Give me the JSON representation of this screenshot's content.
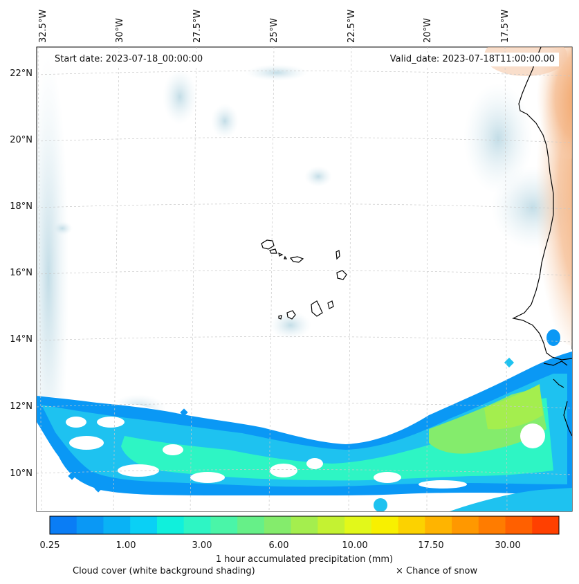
{
  "header": {
    "start_date": "Start date: 2023-07-18_00:00:00",
    "valid_date": "Valid_date: 2023-07-18T11:00:00.00"
  },
  "axes": {
    "lon_labels": [
      "32.5°W",
      "30°W",
      "27.5°W",
      "25°W",
      "22.5°W",
      "20°W",
      "17.5°W"
    ],
    "lat_labels": [
      "22°N",
      "20°N",
      "18°N",
      "16°N",
      "14°N",
      "12°N",
      "10°N"
    ]
  },
  "colorbar": {
    "title": "1 hour accumulated precipitation (mm)",
    "tick_labels": [
      "0.25",
      "1.00",
      "3.00",
      "6.00",
      "10.00",
      "17.50",
      "30.00"
    ],
    "colors": [
      "#0a7df5",
      "#0a98f5",
      "#0ab2f5",
      "#0ad0f5",
      "#10f0dc",
      "#2ef5c4",
      "#4af5a8",
      "#66f088",
      "#84ec6c",
      "#a4ee4e",
      "#c4f232",
      "#e2f81a",
      "#f8f000",
      "#fcd200",
      "#ffb400",
      "#ff9800",
      "#ff7c00",
      "#ff6000",
      "#ff4000"
    ]
  },
  "footer": {
    "cloud_cover": "Cloud cover (white background shading)",
    "snow": "× Chance of snow"
  },
  "map": {
    "colors": {
      "cloud": "#d6e8ef",
      "precip_low": "#0a98f5",
      "precip_mid": "#2ef5c4",
      "precip_high": "#9aee50",
      "dust": "#f2a86a",
      "coast": "#000000"
    }
  }
}
